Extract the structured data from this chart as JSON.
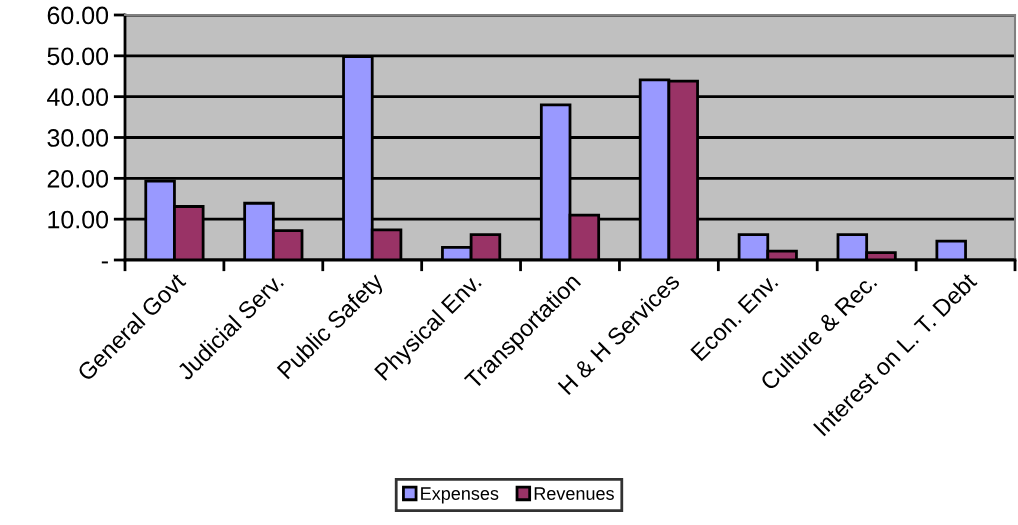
{
  "chart_data": {
    "type": "bar",
    "categories": [
      "General Govt",
      "Judicial Serv.",
      "Public Safety",
      "Physical Env.",
      "Transportation",
      "H & H Services",
      "Econ. Env.",
      "Culture & Rec.",
      "Interest on L. T. Debt"
    ],
    "series": [
      {
        "name": "Expenses",
        "color": "#9999ff",
        "values": [
          19.3,
          13.9,
          49.8,
          3.1,
          38.0,
          44.1,
          6.2,
          6.2,
          4.6
        ]
      },
      {
        "name": "Revenues",
        "color": "#993366",
        "values": [
          13.1,
          7.2,
          7.4,
          6.2,
          11.0,
          43.8,
          2.2,
          1.8,
          null
        ]
      }
    ],
    "ylim": [
      0,
      60
    ],
    "yticks": [
      {
        "value": 0,
        "label": "-"
      },
      {
        "value": 10,
        "label": "10.00"
      },
      {
        "value": 20,
        "label": "20.00"
      },
      {
        "value": 30,
        "label": "30.00"
      },
      {
        "value": 40,
        "label": "40.00"
      },
      {
        "value": 50,
        "label": "50.00"
      },
      {
        "value": 60,
        "label": "60.00"
      }
    ],
    "grid": "y",
    "legend": "bottom"
  }
}
